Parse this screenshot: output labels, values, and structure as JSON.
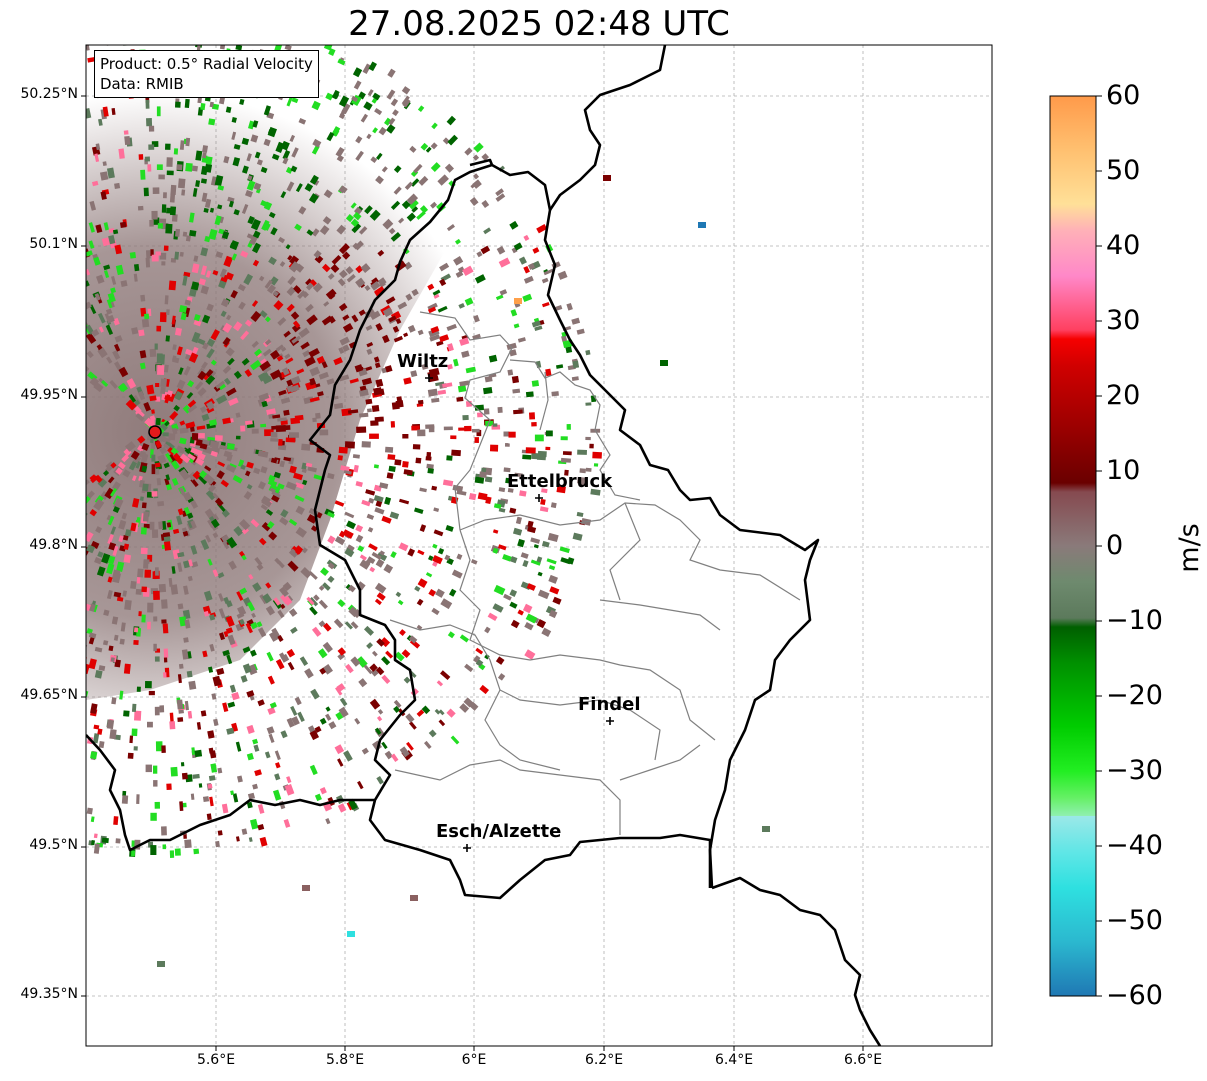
{
  "title": "27.08.2025 02:48 UTC",
  "info": {
    "product": "Product: 0.5° Radial Velocity",
    "data": "Data: RMIB"
  },
  "axes": {
    "lat_labels": [
      "50.25°N",
      "50.1°N",
      "49.95°N",
      "49.8°N",
      "49.65°N",
      "49.5°N",
      "49.35°N"
    ],
    "lon_labels": [
      "5.6°E",
      "5.8°E",
      "6°E",
      "6.2°E",
      "6.4°E",
      "6.6°E"
    ],
    "grid": true
  },
  "cities": [
    {
      "name": "Wiltz"
    },
    {
      "name": "Ettelbruck"
    },
    {
      "name": "Findel"
    },
    {
      "name": "Esch/Alzette"
    }
  ],
  "colorbar": {
    "unit": "m/s",
    "min": -60,
    "max": 60,
    "tick_labels": [
      "60",
      "50",
      "40",
      "30",
      "20",
      "10",
      "0",
      "−10",
      "−20",
      "−30",
      "−40",
      "−50",
      "−60"
    ]
  },
  "colors": {
    "radar_site": "#e41a1c",
    "gray_vel": "#8a7474",
    "green_dark": "#006400",
    "green_bright": "#22dd22",
    "red_dark": "#7a0000",
    "red_bright": "#e00000"
  }
}
